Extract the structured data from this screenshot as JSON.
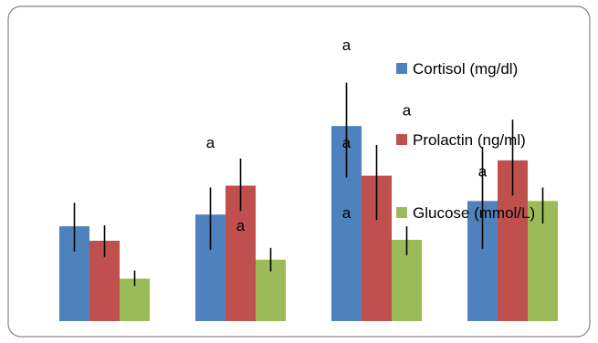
{
  "chart_data": {
    "type": "bar",
    "categories": [
      "",
      "",
      "",
      ""
    ],
    "series": [
      {
        "name": "Cortisol (mg/dl)",
        "color": "#4F81BD",
        "values": [
          105,
          118,
          216,
          133
        ],
        "err_low": [
          77,
          79,
          159,
          80
        ],
        "err_high": [
          131,
          148,
          264,
          193
        ]
      },
      {
        "name": "Prolactin (ng/ml)",
        "color": "#C0504D",
        "values": [
          89,
          150,
          161,
          178
        ],
        "err_low": [
          71,
          122,
          112,
          139
        ],
        "err_high": [
          106,
          180,
          195,
          223
        ]
      },
      {
        "name": "Glucose (mmol/L)",
        "color": "#9BBB59",
        "values": [
          47,
          68,
          90,
          133
        ],
        "err_low": [
          39,
          55,
          73,
          108
        ],
        "err_high": [
          56,
          81,
          105,
          148
        ]
      }
    ],
    "ylim": [
      0,
      300
    ],
    "grid": false,
    "legend_position": "right",
    "annotations": [
      {
        "text": "a",
        "category": 1,
        "series": 0,
        "y": 192
      },
      {
        "text": "a",
        "category": 1,
        "series": 1,
        "y": 100
      },
      {
        "text": "a",
        "category": 2,
        "series": 0,
        "y": 300
      },
      {
        "text": "a",
        "category": 2,
        "series": 0,
        "y": 192
      },
      {
        "text": "a",
        "category": 2,
        "series": 0,
        "y": 114
      },
      {
        "text": "a",
        "category": 2,
        "series": 2,
        "y": 228
      },
      {
        "text": "a",
        "category": 3,
        "series": 0,
        "y": 160
      }
    ]
  }
}
